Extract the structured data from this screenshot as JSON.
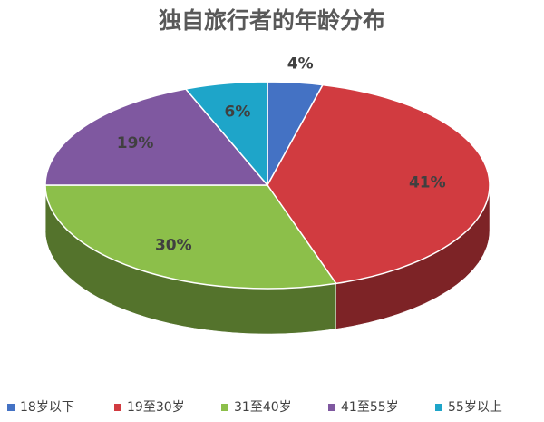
{
  "chart_data": {
    "type": "pie3d",
    "title": "独自旅行者的年龄分布",
    "categories": [
      "18岁以下",
      "19至30岁",
      "31至40岁",
      "41至55岁",
      "55岁以上"
    ],
    "values": [
      4,
      41,
      30,
      19,
      6
    ],
    "value_labels": [
      "4%",
      "41%",
      "30%",
      "19%",
      "6%"
    ],
    "colors": [
      "#4472c4",
      "#d13b40",
      "#8cbf4a",
      "#7f58a0",
      "#1ea5c9"
    ],
    "legend": "bottom"
  }
}
